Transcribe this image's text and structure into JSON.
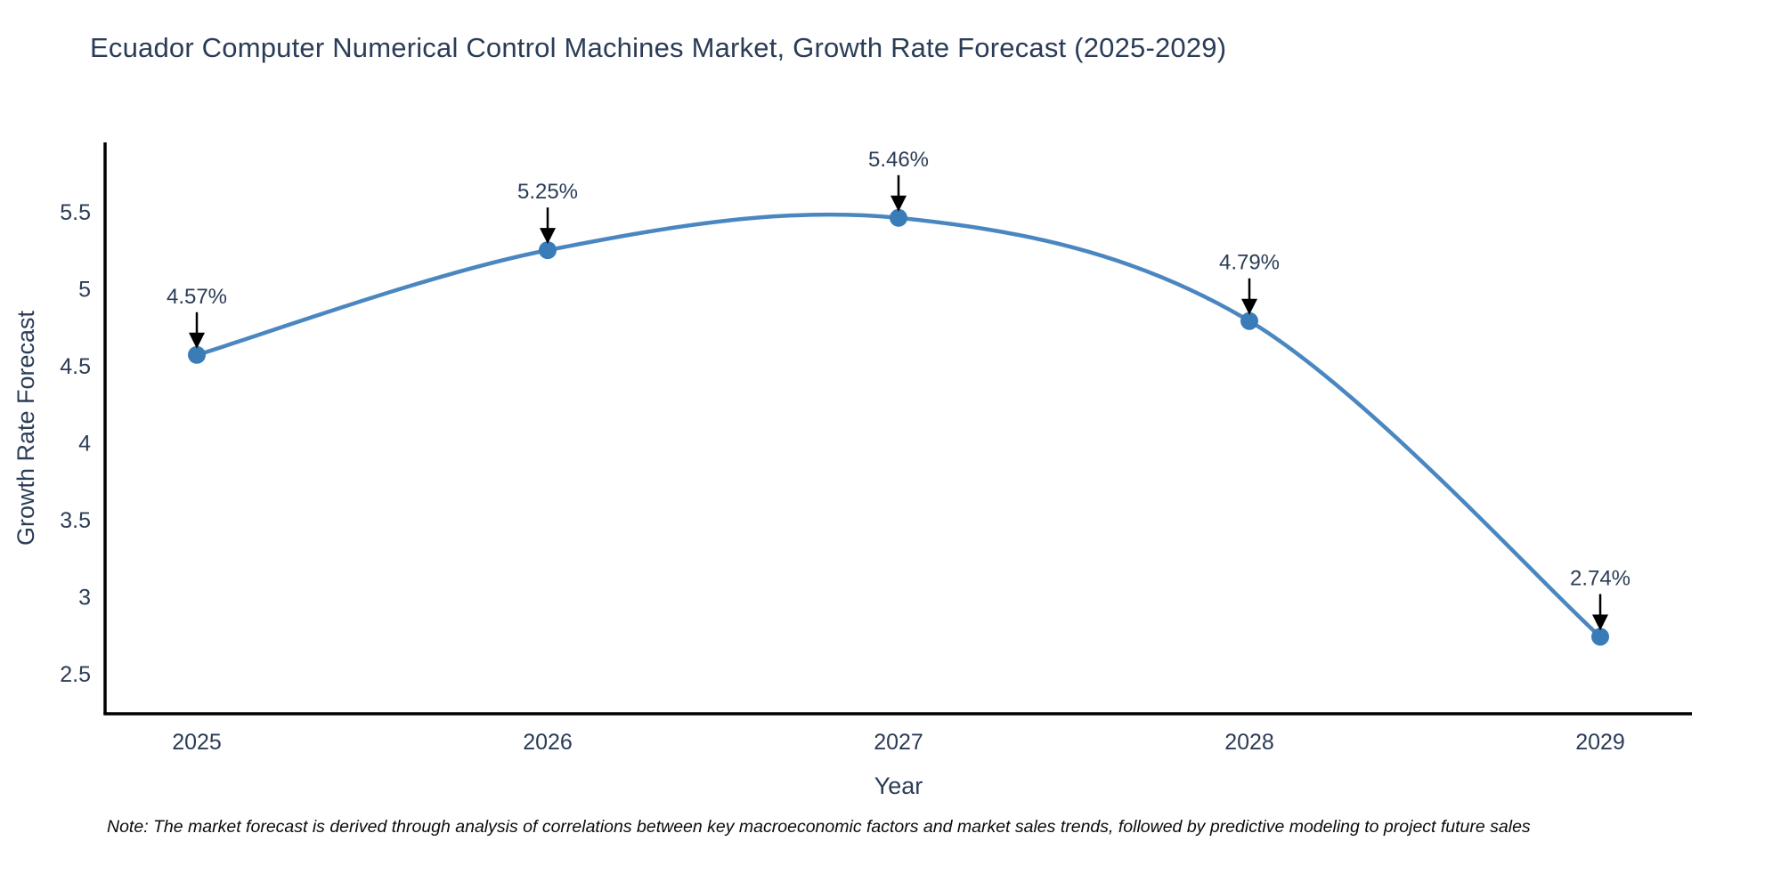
{
  "title": "Ecuador Computer Numerical Control Machines Market, Growth Rate Forecast (2025-2029)",
  "note": "Note: The market forecast is derived through analysis of correlations between key macroeconomic factors and market sales trends, followed by predictive modeling to project future sales",
  "colors": {
    "title_text": "#2b3c57",
    "axis_line": "#000000",
    "tick_text": "#2b3c57",
    "line": "#4a87c0",
    "marker": "#3a7cb8",
    "annotation_arrow": "#000000",
    "annotation_text": "#2b3c57",
    "note_text": "#0b0b0b",
    "background": "#ffffff"
  },
  "chart_data": {
    "type": "line",
    "title": "Ecuador Computer Numerical Control Machines Market, Growth Rate Forecast (2025-2029)",
    "xlabel": "Year",
    "ylabel": "Growth Rate Forecast",
    "x": [
      2025,
      2026,
      2027,
      2028,
      2029
    ],
    "xtick_labels": [
      "2025",
      "2026",
      "2027",
      "2028",
      "2029"
    ],
    "values": [
      4.57,
      5.25,
      5.46,
      4.79,
      2.74
    ],
    "point_labels": [
      "4.57%",
      "5.25%",
      "5.46%",
      "4.79%",
      "2.74%"
    ],
    "yticks": [
      2.5,
      3,
      3.5,
      4,
      4.5,
      5,
      5.5
    ],
    "ytick_labels": [
      "2.5",
      "3",
      "3.5",
      "4",
      "4.5",
      "5",
      "5.5"
    ],
    "ylim": [
      2.24,
      5.95
    ],
    "line_shape": "spline",
    "markers": true,
    "grid": false,
    "legend": "none",
    "annotation_style": "black-arrow-down-to-point"
  }
}
